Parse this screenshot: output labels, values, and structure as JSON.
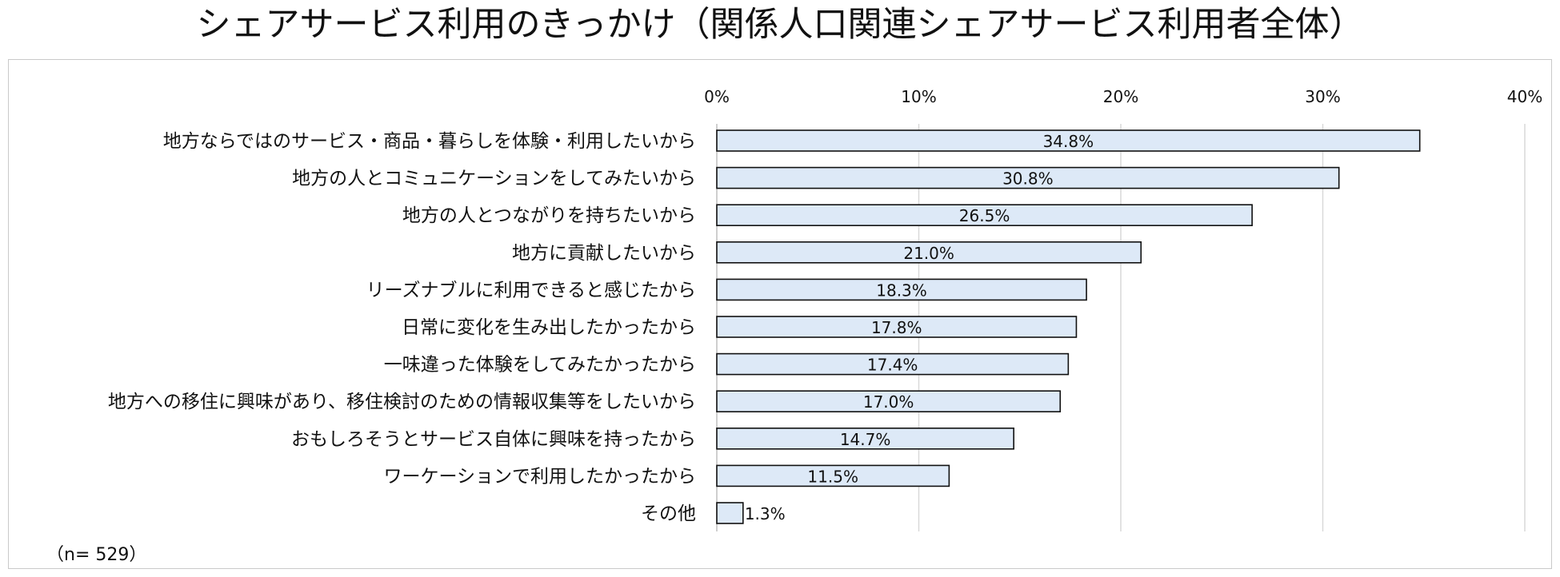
{
  "chart_data": {
    "type": "bar",
    "orientation": "horizontal",
    "title": "シェアサービス利用のきっかけ（関係人口関連シェアサービス利用者全体）",
    "categories": [
      "地方ならではのサービス・商品・暮らしを体験・利用したいから",
      "地方の人とコミュニケーションをしてみたいから",
      "地方の人とつながりを持ちたいから",
      "地方に貢献したいから",
      "リーズナブルに利用できると感じたから",
      "日常に変化を生み出したかったから",
      "一味違った体験をしてみたかったから",
      "地方への移住に興味があり、移住検討のための情報収集等をしたいから",
      "おもしろそうとサービス自体に興味を持ったから",
      "ワーケーションで利用したかったから",
      "その他"
    ],
    "values": [
      34.8,
      30.8,
      26.5,
      21.0,
      18.3,
      17.8,
      17.4,
      17.0,
      14.7,
      11.5,
      1.3
    ],
    "value_labels": [
      "34.8%",
      "30.8%",
      "26.5%",
      "21.0%",
      "18.3%",
      "17.8%",
      "17.4%",
      "17.0%",
      "14.7%",
      "11.5%",
      "1.3%"
    ],
    "xlim": [
      0,
      40
    ],
    "xticks": [
      0,
      10,
      20,
      30,
      40
    ],
    "xtick_labels": [
      "0%",
      "10%",
      "20%",
      "30%",
      "40%"
    ],
    "xlabel": "",
    "ylabel": "",
    "grid": true,
    "bar_color": "#dde9f7",
    "bar_edge_color": "#111111",
    "note": "（n= 529）"
  }
}
